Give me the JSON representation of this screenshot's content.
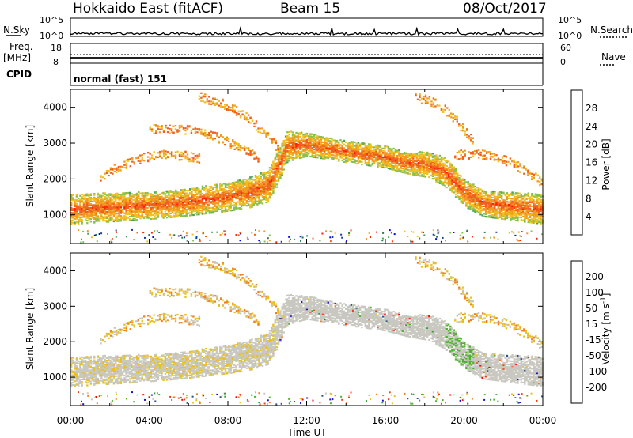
{
  "header": {
    "title": "Hokkaido East (fitACF)",
    "beam": "Beam 15",
    "date": "08/Oct/2017"
  },
  "top_panels": {
    "nsky_label": "N.Sky",
    "nsky_ticks": [
      "10^5",
      "10^0"
    ],
    "nsearch_label": "N.Search",
    "nsearch_ticks": [
      "10^5",
      "10^0"
    ],
    "freq_label": "Freq.",
    "freq_unit": "[MHz]",
    "freq_ticks": [
      "18",
      "8"
    ],
    "nave_label": "Nave",
    "nave_ticks": [
      "60",
      "0"
    ],
    "cpid_label": "CPID",
    "cpid_value": "normal (fast) 151"
  },
  "colors": {
    "power": [
      "#0000ff",
      "#1a3d9c",
      "#2a7a50",
      "#48a05a",
      "#88c050",
      "#f0c020",
      "#f09a20",
      "#f06020",
      "#ff2000"
    ],
    "velocity": [
      "#ff0000",
      "#f04010",
      "#f08020",
      "#e8c020",
      "#c8c8c0",
      "#50b030",
      "#30a040",
      "#28508a",
      "#2010d0"
    ]
  },
  "chart_data": [
    {
      "type": "heatmap",
      "title": "",
      "xlabel": "Time UT",
      "ylabel": "Slant Range [km]",
      "xlim": [
        0,
        24
      ],
      "ylim": [
        200,
        4500
      ],
      "x_tick_labels": [
        "00:00",
        "04:00",
        "08:00",
        "12:00",
        "16:00",
        "20:00",
        "00:00"
      ],
      "y_tick_labels": [
        "1000",
        "2000",
        "3000",
        "4000"
      ],
      "colorbar_label": "Power [dB]",
      "colorbar_ticks": [
        "4",
        "8",
        "12",
        "16",
        "20",
        "24",
        "28"
      ],
      "colorbar_range": [
        0,
        30
      ],
      "echo_bands": [
        {
          "name": "",
          "t": [
            0,
            2,
            4,
            6,
            8,
            9,
            10,
            10.5,
            11,
            12,
            14,
            16,
            17,
            18,
            19,
            20,
            21,
            22,
            24
          ],
          "r": [
            1150,
            1200,
            1250,
            1350,
            1500,
            1600,
            1800,
            2300,
            2900,
            2950,
            2750,
            2600,
            2450,
            2400,
            2200,
            1600,
            1300,
            1250,
            1150
          ],
          "w": [
            420,
            400,
            380,
            380,
            400,
            420,
            450,
            480,
            420,
            320,
            300,
            300,
            300,
            350,
            400,
            380,
            360,
            380,
            420
          ],
          "p": 27
        }
      ]
    },
    {
      "type": "heatmap",
      "title": "",
      "xlabel": "Time UT",
      "ylabel": "Slant Range [km]",
      "xlim": [
        0,
        24
      ],
      "ylim": [
        200,
        4500
      ],
      "x_tick_labels": [
        "00:00",
        "04:00",
        "08:00",
        "12:00",
        "16:00",
        "20:00",
        "00:00"
      ],
      "y_tick_labels": [
        "1000",
        "2000",
        "3000",
        "4000"
      ],
      "colorbar_label": "Velocity [m s-1]",
      "colorbar_ticks": [
        "200",
        "100",
        "50",
        "15",
        "-15",
        "-50",
        "-100",
        "-200"
      ],
      "colorbar_range": [
        -250,
        250
      ]
    }
  ],
  "time_axis_label": "Time UT"
}
